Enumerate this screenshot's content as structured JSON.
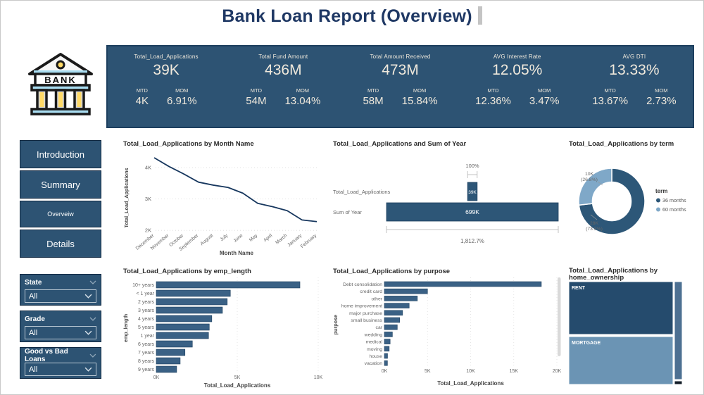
{
  "header": {
    "title": "Bank Loan Report (Overview)"
  },
  "logo": {
    "text": "BANK"
  },
  "labels": {
    "mtd": "MTD",
    "mom": "MOM"
  },
  "kpis": [
    {
      "label": "Total_Load_Applications",
      "value": "39K",
      "mtd": "4K",
      "mom": "6.91%"
    },
    {
      "label": "Total Fund Amount",
      "value": "436M",
      "mtd": "54M",
      "mom": "13.04%"
    },
    {
      "label": "Total Amount Received",
      "value": "473M",
      "mtd": "58M",
      "mom": "15.84%"
    },
    {
      "label": "AVG Interest Rate",
      "value": "12.05%",
      "mtd": "12.36%",
      "mom": "3.47%"
    },
    {
      "label": "AVG DTI",
      "value": "13.33%",
      "mtd": "13.67%",
      "mom": "2.73%"
    }
  ],
  "sidebar": {
    "buttons": [
      "Introduction",
      "Summary",
      "Overveiw",
      "Details"
    ]
  },
  "filters": [
    {
      "label": "State",
      "value": "All"
    },
    {
      "label": "Grade",
      "value": "All"
    },
    {
      "label": "Good vs Bad Loans",
      "value": "All"
    }
  ],
  "colors": {
    "panel_navy": "#2d5373",
    "title_navy": "#1f3864",
    "kpi_text_cream": "#f0e9dc",
    "bar_blue": "#3a6185",
    "line_navy": "#17375e"
  },
  "chart_data": [
    {
      "id": "line-month",
      "type": "line",
      "title": "Total_Load_Applications by Month Name",
      "xlabel": "Month Name",
      "ylabel": "Total_Load_Applications",
      "ylim": [
        2000,
        4600
      ],
      "grid": "dotted-horizontal",
      "legend": "none",
      "yticks": [
        {
          "label": "4K",
          "v": 4000
        },
        {
          "label": "3K",
          "v": 3000
        },
        {
          "label": "2K",
          "v": 2000
        }
      ],
      "categories": [
        "December",
        "November",
        "October",
        "September",
        "August",
        "July",
        "June",
        "May",
        "April",
        "March",
        "January",
        "February"
      ],
      "values": [
        4314,
        4035,
        3796,
        3536,
        3441,
        3366,
        3184,
        2862,
        2755,
        2627,
        2332,
        2279
      ],
      "line_color": "#17375e"
    },
    {
      "id": "funnel-year",
      "type": "funnel",
      "title": "Total_Load_Applications and Sum of Year",
      "rows": [
        {
          "label": "Total_Load_Applications",
          "value": 39000,
          "text": "39K"
        },
        {
          "label": "Sum of Year",
          "value": 699000,
          "text": "699K"
        }
      ],
      "top_annotation": "100%",
      "bottom_annotation": "1,812.7%",
      "bar_color": "#2d5677"
    },
    {
      "id": "donut-term",
      "type": "pie",
      "title": "Total_Load_Applications by term",
      "legend_title": "term",
      "legend_position": "right",
      "slices": [
        {
          "label": "36 months",
          "value_text": "28K",
          "pct_text": "(73.2%)",
          "pct": 73.2,
          "color": "#2d5778"
        },
        {
          "label": "60 months",
          "value_text": "10K",
          "pct_text": "(26.8%)",
          "pct": 26.8,
          "color": "#7fa8c8"
        }
      ]
    },
    {
      "id": "bar-emp-length",
      "type": "bar",
      "title": "Total_Load_Applications by emp_length",
      "xlabel": "Total_Load_Applications",
      "ylabel": "emp_length",
      "xlim": [
        0,
        10000
      ],
      "grid": "dotted-vertical",
      "xticks": [
        {
          "label": "0K",
          "v": 0
        },
        {
          "label": "5K",
          "v": 5000
        },
        {
          "label": "10K",
          "v": 10000
        }
      ],
      "categories": [
        "10+ years",
        "< 1 year",
        "2 years",
        "3 years",
        "4 years",
        "5 years",
        "1 year",
        "6 years",
        "7 years",
        "8 years",
        "9 years"
      ],
      "values": [
        8870,
        4575,
        4382,
        4086,
        3428,
        3273,
        3227,
        2228,
        1772,
        1476,
        1258
      ],
      "bar_color": "#3a6185"
    },
    {
      "id": "bar-purpose",
      "type": "bar",
      "title": "Total_Load_Applications by purpose",
      "xlabel": "Total_Load_Applications",
      "ylabel": "purpose",
      "xlim": [
        0,
        20000
      ],
      "grid": "dotted-vertical",
      "scrollbar": true,
      "xticks": [
        {
          "label": "0K",
          "v": 0
        },
        {
          "label": "5K",
          "v": 5000
        },
        {
          "label": "10K",
          "v": 10000
        },
        {
          "label": "15K",
          "v": 15000
        },
        {
          "label": "20K",
          "v": 20000
        }
      ],
      "categories": [
        "Debt consolidation",
        "credit card",
        "other",
        "home improvement",
        "major purchase",
        "small business",
        "car",
        "wedding",
        "medical",
        "moving",
        "house",
        "vacation"
      ],
      "values": [
        18200,
        5000,
        3824,
        2876,
        2110,
        1776,
        1497,
        928,
        667,
        559,
        366,
        357
      ],
      "bar_color": "#3a6185"
    },
    {
      "id": "treemap-home-ownership",
      "type": "treemap",
      "title_lines": [
        "Total_Load_Applications by",
        "home_ownership"
      ],
      "nodes": [
        {
          "label": "RENT",
          "color": "#254b6d"
        },
        {
          "label": "MORTGAGE",
          "color": "#6b94b4"
        },
        {
          "label": "",
          "color": "#4d7092"
        },
        {
          "label": "",
          "color": "#131d27"
        }
      ]
    }
  ]
}
